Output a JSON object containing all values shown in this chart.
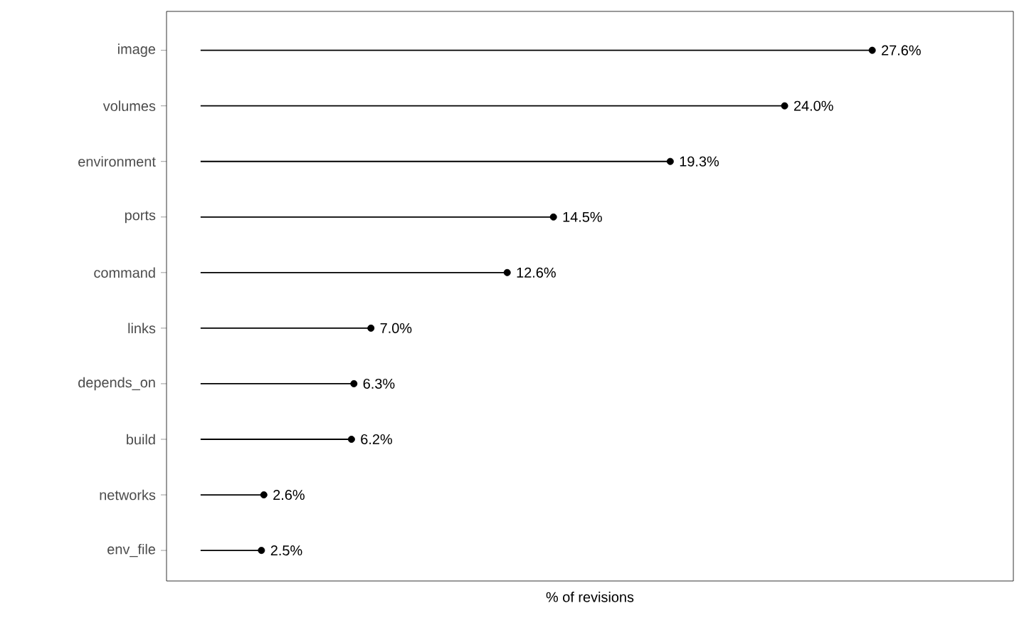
{
  "chart_data": {
    "type": "lollipop",
    "orientation": "horizontal",
    "xlabel": "% of revisions",
    "categories": [
      "image",
      "volumes",
      "environment",
      "ports",
      "command",
      "links",
      "depends_on",
      "build",
      "networks",
      "env_file"
    ],
    "values": [
      27.6,
      24.0,
      19.3,
      14.5,
      12.6,
      7.0,
      6.3,
      6.2,
      2.6,
      2.5
    ],
    "value_labels": [
      "27.6%",
      "24.0%",
      "19.3%",
      "14.5%",
      "12.6%",
      "7.0%",
      "6.3%",
      "6.2%",
      "2.6%",
      "2.5%"
    ],
    "color": "#000000",
    "marker": "circle",
    "xlim": [
      -1.4,
      33.4
    ],
    "tick_labels": "y"
  }
}
